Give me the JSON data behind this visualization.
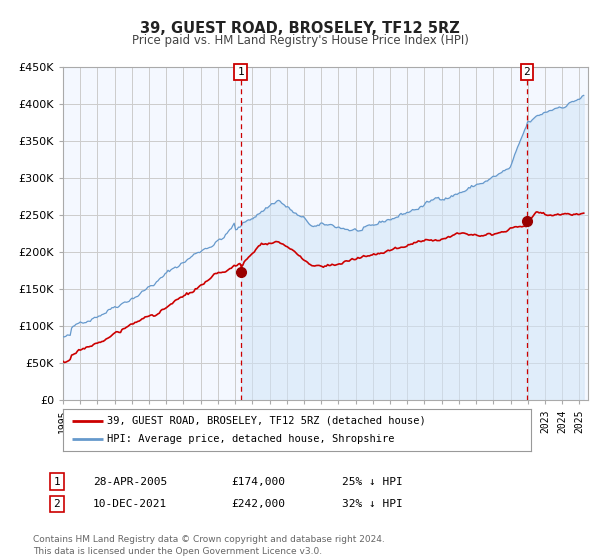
{
  "title": "39, GUEST ROAD, BROSELEY, TF12 5RZ",
  "subtitle": "Price paid vs. HM Land Registry's House Price Index (HPI)",
  "legend_line1": "39, GUEST ROAD, BROSELEY, TF12 5RZ (detached house)",
  "legend_line2": "HPI: Average price, detached house, Shropshire",
  "annotation_text": "Contains HM Land Registry data © Crown copyright and database right 2024.\nThis data is licensed under the Open Government Licence v3.0.",
  "marker1_date": "28-APR-2005",
  "marker1_price": "£174,000",
  "marker1_hpi": "25% ↓ HPI",
  "marker2_date": "10-DEC-2021",
  "marker2_price": "£242,000",
  "marker2_hpi": "32% ↓ HPI",
  "line1_color": "#cc0000",
  "line2_color": "#6699cc",
  "fill_color": "#d0e4f7",
  "marker_color": "#990000",
  "vline_color": "#cc0000",
  "grid_color": "#cccccc",
  "plot_bg_color": "#f4f8ff",
  "ylim": [
    0,
    450000
  ],
  "yticks": [
    0,
    50000,
    100000,
    150000,
    200000,
    250000,
    300000,
    350000,
    400000,
    450000
  ],
  "ytick_labels": [
    "£0",
    "£50K",
    "£100K",
    "£150K",
    "£200K",
    "£250K",
    "£300K",
    "£350K",
    "£400K",
    "£450K"
  ],
  "xlim_start": 1995.0,
  "xlim_end": 2025.5,
  "vline1_x": 2005.32,
  "vline2_x": 2021.95,
  "marker1_x": 2005.32,
  "marker1_y": 174000,
  "marker2_x": 2021.95,
  "marker2_y": 242000
}
